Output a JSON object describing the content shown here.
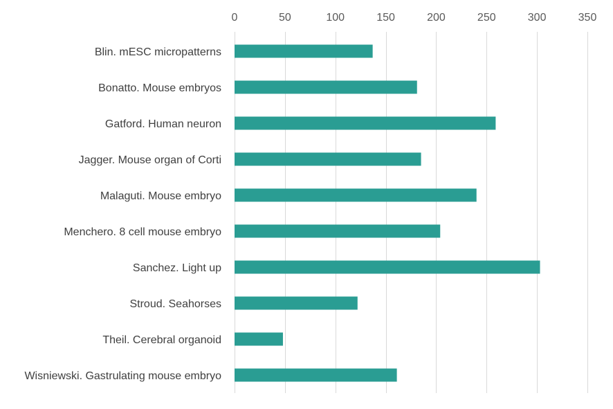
{
  "chart_data": {
    "type": "bar",
    "orientation": "horizontal",
    "title": "",
    "xlabel": "",
    "ylabel": "",
    "categories": [
      "Blin. mESC micropatterns",
      "Bonatto. Mouse embryos",
      "Gatford. Human neuron",
      "Jagger. Mouse organ of Corti",
      "Malaguti. Mouse embryo",
      "Menchero. 8 cell mouse embryo",
      "Sanchez. Light up",
      "Stroud. Seahorses",
      "Theil. Cerebral organoid",
      "Wisniewski. Gastrulating mouse embryo"
    ],
    "values": [
      137,
      181,
      259,
      185,
      240,
      204,
      303,
      122,
      48,
      161
    ],
    "xlim": [
      0,
      350
    ],
    "xticks": [
      "0",
      "50",
      "100",
      "150",
      "200",
      "250",
      "300",
      "350"
    ],
    "grid": "vertical",
    "axis_position": "top",
    "legend": "none",
    "bar_color": "#2a9d93",
    "grid_color": "#d9d9d9"
  }
}
